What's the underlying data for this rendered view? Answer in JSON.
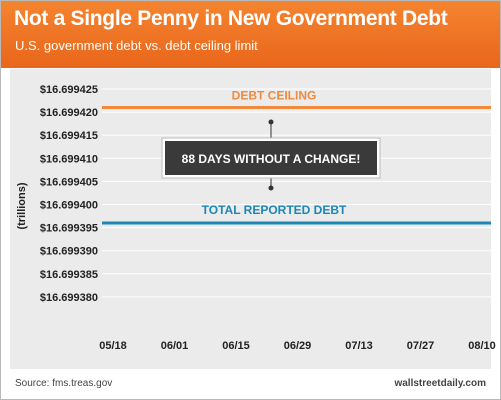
{
  "header": {
    "title": "Not a Single Penny in New Government Debt",
    "subtitle": "U.S. government debt vs. debt ceiling limit"
  },
  "footer": {
    "source": "Source: fms.treas.gov",
    "brand": "wallstreetdaily.com"
  },
  "colors": {
    "header": "#ee7424",
    "ceiling": "#f08a3c",
    "debt": "#1d86b4",
    "callout_bg": "#3a3a3a",
    "plot_bg": "#ebebeb"
  },
  "chart_data": {
    "type": "line",
    "title": "Not a Single Penny in New Government Debt",
    "subtitle": "U.S. government debt vs. debt ceiling limit",
    "ylabel": "(trillions)",
    "xlabel": "",
    "ylim": [
      16.69938,
      16.699425
    ],
    "yticks": [
      "$16.699425",
      "$16.699420",
      "$16.699415",
      "$16.699410",
      "$16.699405",
      "$16.699400",
      "$16.699395",
      "$16.699390",
      "$16.699385",
      "$16.699380"
    ],
    "xticks": [
      "05/18",
      "06/01",
      "06/15",
      "06/29",
      "07/13",
      "07/27",
      "08/10"
    ],
    "grid": true,
    "series": [
      {
        "name": "DEBT CEILING",
        "values": [
          16.699421,
          16.699421
        ]
      },
      {
        "name": "TOTAL REPORTED DEBT",
        "values": [
          16.699396,
          16.699396
        ]
      }
    ],
    "annotation": "88 DAYS WITHOUT A CHANGE!"
  }
}
